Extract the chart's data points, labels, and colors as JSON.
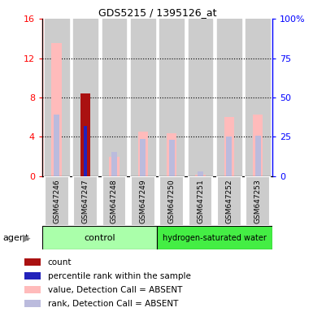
{
  "title": "GDS5215 / 1395126_at",
  "samples": [
    "GSM647246",
    "GSM647247",
    "GSM647248",
    "GSM647249",
    "GSM647250",
    "GSM647251",
    "GSM647252",
    "GSM647253"
  ],
  "value_absent": [
    13.5,
    null,
    2.0,
    4.5,
    4.4,
    0.2,
    6.0,
    6.3
  ],
  "rank_absent": [
    6.25,
    null,
    2.5,
    3.8,
    3.7,
    0.5,
    4.0,
    4.1
  ],
  "count_present": [
    null,
    8.4,
    null,
    null,
    null,
    null,
    null,
    null
  ],
  "rank_present": [
    null,
    5.1,
    null,
    null,
    null,
    null,
    null,
    null
  ],
  "ylim_left": [
    0,
    16
  ],
  "ylim_right": [
    0,
    100
  ],
  "yticks_left": [
    0,
    4,
    8,
    12,
    16
  ],
  "yticks_right": [
    0,
    25,
    50,
    75,
    100
  ],
  "color_count": "#aa1111",
  "color_rank_present": "#2222bb",
  "color_value_absent": "#ffbbbb",
  "color_rank_absent": "#bbbbdd",
  "bar_width": 0.35,
  "rank_bar_width": 0.2,
  "background_col": "#cccccc",
  "ctrl_color": "#aaffaa",
  "h2_color": "#44ee44",
  "legend_items": [
    {
      "label": "count",
      "color": "#aa1111"
    },
    {
      "label": "percentile rank within the sample",
      "color": "#2222bb"
    },
    {
      "label": "value, Detection Call = ABSENT",
      "color": "#ffbbbb"
    },
    {
      "label": "rank, Detection Call = ABSENT",
      "color": "#bbbbdd"
    }
  ]
}
